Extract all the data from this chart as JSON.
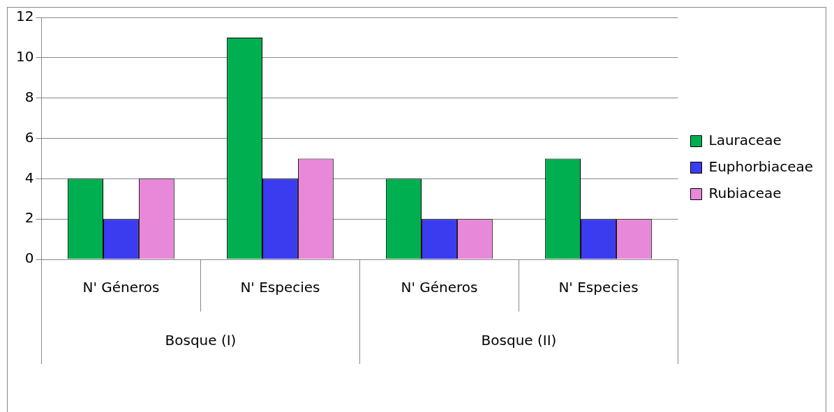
{
  "chart_data": {
    "type": "bar",
    "categories": [
      "N' Géneros",
      "N' Especies",
      "N' Géneros",
      "N' Especies"
    ],
    "series": [
      {
        "name": "Lauraceae",
        "color": "#00b050",
        "values": [
          4,
          11,
          4,
          5
        ]
      },
      {
        "name": "Euphorbiaceae",
        "color": "#3b3bf0",
        "values": [
          2,
          4,
          2,
          2
        ]
      },
      {
        "name": "Rubiaceae",
        "color": "#e888d8",
        "values": [
          4,
          5,
          2,
          2
        ]
      }
    ],
    "annotations": [
      "Bosque (I)",
      "Bosque (II)"
    ],
    "ylim": [
      0,
      12
    ],
    "yticks": [
      0,
      2,
      4,
      6,
      8,
      10,
      12
    ],
    "grid": "y",
    "legend": "right"
  }
}
